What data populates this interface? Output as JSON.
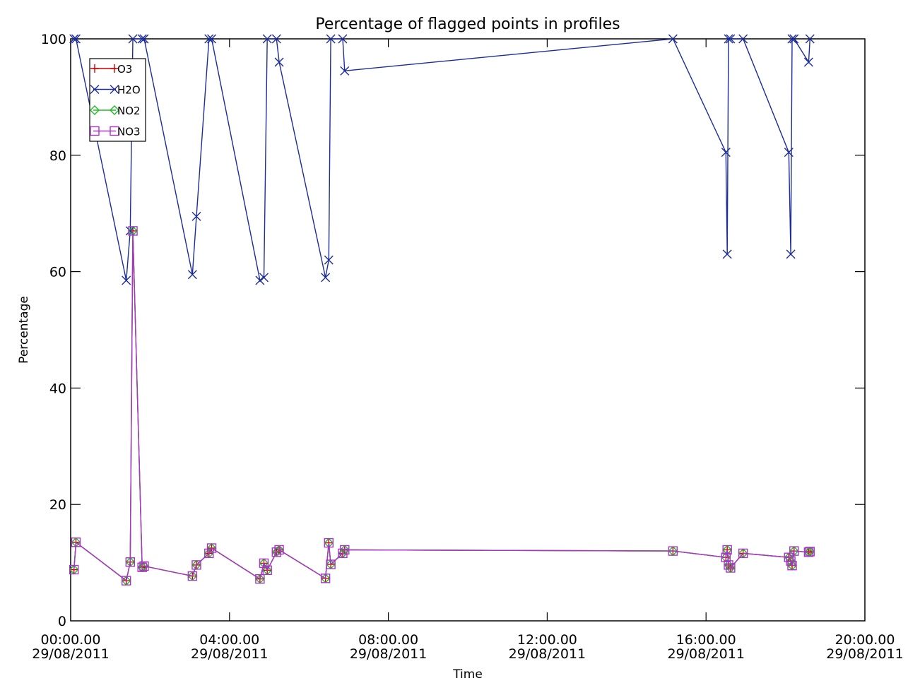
{
  "chart_data": {
    "type": "line",
    "title": "Percentage of flagged points in profiles",
    "xlabel": "Time",
    "ylabel": "Percentage",
    "xlim": [
      "00:00",
      "20:00"
    ],
    "ylim": [
      0,
      100
    ],
    "x_ticks": [
      {
        "time": "00:00.00",
        "date": "29/08/2011"
      },
      {
        "time": "04:00.00",
        "date": "29/08/2011"
      },
      {
        "time": "08:00.00",
        "date": "29/08/2011"
      },
      {
        "time": "12:00.00",
        "date": "29/08/2011"
      },
      {
        "time": "16:00.00",
        "date": "29/08/2011"
      },
      {
        "time": "20:00.00",
        "date": "29/08/2011"
      }
    ],
    "y_ticks": [
      0,
      20,
      40,
      60,
      80,
      100
    ],
    "grid": false,
    "legend_position": "top-left",
    "x": [
      "00:05",
      "00:08",
      "01:24",
      "01:30",
      "01:34",
      "01:48",
      "01:51",
      "03:04",
      "03:10",
      "03:29",
      "03:33",
      "04:46",
      "04:52",
      "04:57",
      "05:11",
      "05:15",
      "06:25",
      "06:30",
      "06:33",
      "06:51",
      "06:54",
      "15:10",
      "16:30",
      "16:32",
      "16:34",
      "16:37",
      "16:56",
      "18:05",
      "18:08",
      "18:10",
      "18:13",
      "18:35",
      "18:37"
    ],
    "series": [
      {
        "name": "O3",
        "color": "#cc0000",
        "marker": "plus",
        "values": [
          8.8,
          13.5,
          6.9,
          10.1,
          67.0,
          9.2,
          9.4,
          7.7,
          9.6,
          11.6,
          12.5,
          7.2,
          9.9,
          8.7,
          11.8,
          12.2,
          7.3,
          13.4,
          9.7,
          11.6,
          12.2,
          12.0,
          10.9,
          12.2,
          9.6,
          9.1,
          11.6,
          10.9,
          10.3,
          9.5,
          12.0,
          11.8,
          11.9
        ]
      },
      {
        "name": "H2O",
        "color": "#1c2d9a",
        "marker": "x",
        "values": [
          100,
          100,
          58.5,
          67.0,
          100,
          100,
          100,
          59.5,
          69.5,
          100,
          100,
          58.5,
          59.0,
          100,
          100,
          96.0,
          59.0,
          62.0,
          100,
          100,
          94.5,
          100,
          80.5,
          63.0,
          100,
          100,
          100,
          80.5,
          63.0,
          100,
          100,
          96.0,
          100
        ]
      },
      {
        "name": "NO2",
        "color": "#22bb22",
        "marker": "diamond",
        "values": [
          8.8,
          13.5,
          6.9,
          10.1,
          67.0,
          9.2,
          9.4,
          7.7,
          9.6,
          11.6,
          12.5,
          7.2,
          9.9,
          8.7,
          11.8,
          12.2,
          7.3,
          13.4,
          9.7,
          11.6,
          12.2,
          12.0,
          10.9,
          12.2,
          9.6,
          9.1,
          11.6,
          10.9,
          10.3,
          9.5,
          12.0,
          11.8,
          11.9
        ]
      },
      {
        "name": "NO3",
        "color": "#aa33cc",
        "marker": "square",
        "values": [
          8.8,
          13.5,
          6.9,
          10.1,
          67.0,
          9.2,
          9.4,
          7.7,
          9.6,
          11.6,
          12.5,
          7.2,
          9.9,
          8.7,
          11.8,
          12.2,
          7.3,
          13.4,
          9.7,
          11.6,
          12.2,
          12.0,
          10.9,
          12.2,
          9.6,
          9.1,
          11.6,
          10.9,
          10.3,
          9.5,
          12.0,
          11.8,
          11.9
        ]
      }
    ]
  }
}
